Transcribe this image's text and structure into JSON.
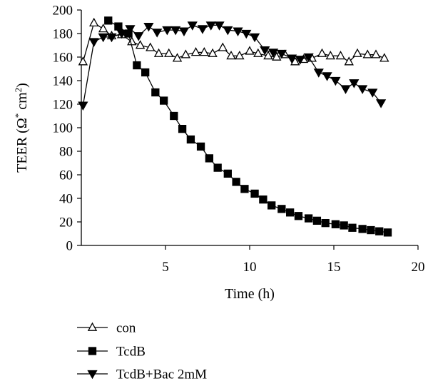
{
  "chart_data": {
    "type": "line",
    "xlabel": "Time (h)",
    "ylabel_main": "TEER (Ω",
    "ylabel_sup1": "*",
    "ylabel_mid": " cm",
    "ylabel_sup2": "2",
    "ylabel_end": ")",
    "xlim": [
      0,
      20
    ],
    "ylim": [
      0,
      200
    ],
    "x_ticks": [
      5,
      10,
      15,
      20
    ],
    "y_ticks": [
      0,
      20,
      40,
      60,
      80,
      100,
      120,
      140,
      160,
      180,
      200
    ],
    "grid": false,
    "legend_position": "bottom-left",
    "series": [
      {
        "name": "con",
        "marker": "triangle-up-open",
        "points": [
          [
            0.1,
            156
          ],
          [
            0.75,
            189
          ],
          [
            1.3,
            184
          ],
          [
            1.8,
            178
          ],
          [
            2.4,
            179
          ],
          [
            3.0,
            173
          ],
          [
            3.5,
            170
          ],
          [
            4.1,
            168
          ],
          [
            4.6,
            163
          ],
          [
            5.2,
            163
          ],
          [
            5.7,
            159
          ],
          [
            6.2,
            162
          ],
          [
            6.8,
            164
          ],
          [
            7.3,
            164
          ],
          [
            7.8,
            163
          ],
          [
            8.4,
            168
          ],
          [
            8.9,
            161
          ],
          [
            9.4,
            161
          ],
          [
            10.0,
            165
          ],
          [
            10.5,
            163
          ],
          [
            11.1,
            161
          ],
          [
            11.6,
            160
          ],
          [
            12.1,
            162
          ],
          [
            12.7,
            156
          ],
          [
            13.2,
            158
          ],
          [
            13.7,
            159
          ],
          [
            14.3,
            163
          ],
          [
            14.8,
            161
          ],
          [
            15.4,
            161
          ],
          [
            15.9,
            156
          ],
          [
            16.4,
            163
          ],
          [
            17.0,
            162
          ],
          [
            17.5,
            162
          ],
          [
            18.0,
            159
          ]
        ]
      },
      {
        "name": "TcdB",
        "marker": "square-filled",
        "points": [
          [
            1.6,
            191
          ],
          [
            2.2,
            186
          ],
          [
            2.8,
            180
          ],
          [
            3.3,
            153
          ],
          [
            3.8,
            147
          ],
          [
            4.4,
            130
          ],
          [
            4.9,
            123
          ],
          [
            5.5,
            110
          ],
          [
            6.0,
            99
          ],
          [
            6.5,
            90
          ],
          [
            7.1,
            84
          ],
          [
            7.6,
            74
          ],
          [
            8.1,
            66
          ],
          [
            8.7,
            61
          ],
          [
            9.2,
            54
          ],
          [
            9.7,
            48
          ],
          [
            10.3,
            44
          ],
          [
            10.8,
            39
          ],
          [
            11.3,
            34
          ],
          [
            11.9,
            31
          ],
          [
            12.4,
            28
          ],
          [
            12.9,
            25
          ],
          [
            13.5,
            23
          ],
          [
            14.0,
            21
          ],
          [
            14.5,
            19
          ],
          [
            15.1,
            18
          ],
          [
            15.6,
            17
          ],
          [
            16.1,
            15
          ],
          [
            16.7,
            14
          ],
          [
            17.2,
            13
          ],
          [
            17.7,
            12
          ],
          [
            18.2,
            11
          ]
        ]
      },
      {
        "name": "TcdB+Bac 2mM",
        "marker": "triangle-down-filled",
        "points": [
          [
            0.1,
            119
          ],
          [
            0.75,
            173
          ],
          [
            1.3,
            177
          ],
          [
            1.8,
            177
          ],
          [
            2.4,
            180
          ],
          [
            2.9,
            184
          ],
          [
            3.4,
            178
          ],
          [
            4.0,
            186
          ],
          [
            4.5,
            181
          ],
          [
            5.1,
            183
          ],
          [
            5.6,
            183
          ],
          [
            6.1,
            182
          ],
          [
            6.6,
            187
          ],
          [
            7.2,
            184
          ],
          [
            7.7,
            187
          ],
          [
            8.2,
            187
          ],
          [
            8.7,
            183
          ],
          [
            9.3,
            182
          ],
          [
            9.8,
            180
          ],
          [
            10.3,
            177
          ],
          [
            10.9,
            166
          ],
          [
            11.4,
            164
          ],
          [
            11.9,
            163
          ],
          [
            12.5,
            159
          ],
          [
            13.0,
            158
          ],
          [
            13.5,
            160
          ],
          [
            14.1,
            147
          ],
          [
            14.6,
            144
          ],
          [
            15.1,
            140
          ],
          [
            15.7,
            133
          ],
          [
            16.2,
            138
          ],
          [
            16.7,
            133
          ],
          [
            17.3,
            130
          ],
          [
            17.8,
            121
          ]
        ]
      }
    ]
  }
}
